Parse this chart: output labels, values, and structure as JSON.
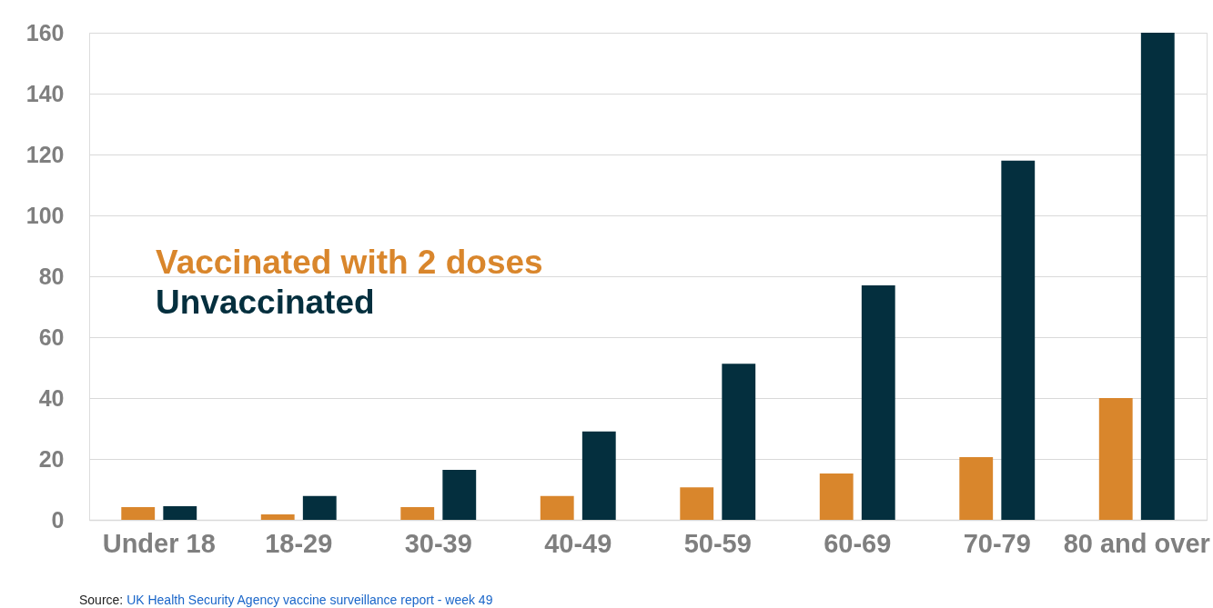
{
  "chart_data": {
    "type": "bar",
    "categories": [
      "Under 18",
      "18-29",
      "30-39",
      "40-49",
      "50-59",
      "60-69",
      "70-79",
      "80 and over"
    ],
    "series": [
      {
        "name": "Vaccinated with 2 doses",
        "color": "#d9862c",
        "values": [
          4.2,
          1.8,
          4.2,
          7.8,
          10.7,
          15.2,
          20.6,
          40
        ]
      },
      {
        "name": "Unvaccinated",
        "color": "#042f3e",
        "values": [
          4.5,
          7.8,
          16.4,
          29,
          51.3,
          77,
          118,
          160
        ]
      }
    ],
    "ylim": [
      0,
      160
    ],
    "yticks": [
      0,
      20,
      40,
      60,
      80,
      100,
      120,
      140,
      160
    ],
    "grid": "y",
    "legend": "left",
    "annotations": [
      "Source: UK Health Security Agency vaccine surveillance report - week 49"
    ]
  }
}
